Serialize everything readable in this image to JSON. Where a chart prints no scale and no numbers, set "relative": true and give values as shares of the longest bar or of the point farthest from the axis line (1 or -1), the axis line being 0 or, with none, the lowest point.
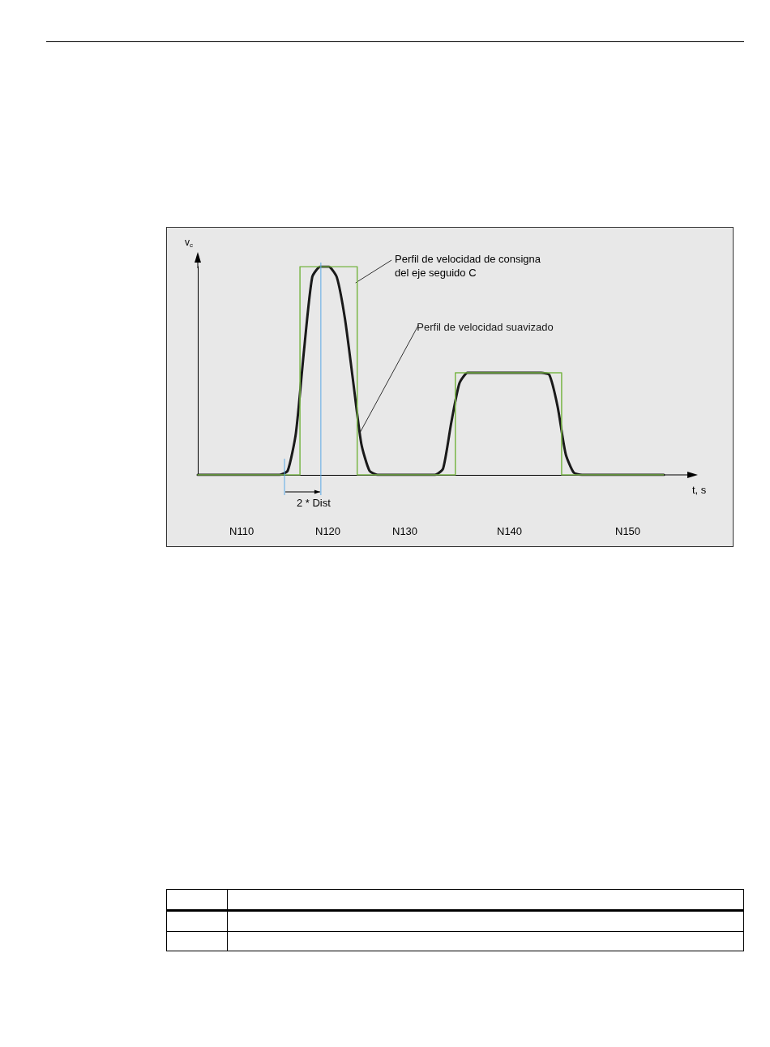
{
  "chart_data": {
    "type": "line",
    "relative": true,
    "xlabel": "t, s",
    "ylabel": "v$_{c}$",
    "categories": [
      null,
      null,
      null,
      null,
      null,
      null,
      null,
      null,
      null,
      null,
      null,
      null,
      null,
      null,
      null,
      null,
      null,
      null,
      null,
      null,
      null,
      null,
      null,
      null,
      null,
      null,
      null,
      null,
      null,
      null,
      null,
      null,
      null,
      null,
      null,
      null,
      null,
      null,
      null,
      null,
      null,
      null,
      null,
      null,
      null,
      null,
      null,
      null,
      null,
      null,
      null,
      null,
      null,
      null,
      null,
      null,
      null,
      null
    ],
    "series": [
      {
        "name": "Perfil de velocidad de consigna\ndel eje seguido C",
        "type": "step",
        "color": "#7ab648",
        "values": [
          0,
          0,
          0,
          0,
          0,
          0,
          0,
          0,
          0,
          0,
          0,
          0,
          0,
          1,
          1,
          1,
          1,
          1,
          1,
          1,
          0,
          0,
          0,
          0,
          0,
          0,
          0,
          0,
          0,
          0,
          0,
          0,
          0.49,
          0.49,
          0.49,
          0.49,
          0.49,
          0.49,
          0.49,
          0.49,
          0.49,
          0.49,
          0.49,
          0.49,
          0.49,
          0,
          0,
          0,
          0,
          0,
          0,
          0,
          0,
          0,
          0,
          0,
          0,
          0
        ]
      },
      {
        "name": "Perfil de velocidad suavizado",
        "color": "#1a1a1a",
        "values": [
          0,
          0,
          0,
          0,
          0,
          0,
          0,
          0,
          0,
          0,
          0,
          0.02,
          0.2,
          0.6,
          0.95,
          1,
          1,
          0.95,
          0.75,
          0.45,
          0.15,
          0.02,
          0,
          0,
          0,
          0,
          0,
          0,
          0,
          0,
          0.03,
          0.25,
          0.44,
          0.49,
          0.49,
          0.49,
          0.49,
          0.49,
          0.49,
          0.49,
          0.49,
          0.49,
          0.49,
          0.48,
          0.33,
          0.1,
          0.01,
          0,
          0,
          0,
          0,
          0,
          0,
          0,
          0,
          0,
          0,
          0
        ]
      }
    ],
    "annotations": [
      "2 * Dist",
      "N110",
      "N120",
      "N130",
      "N140",
      "N150"
    ],
    "grid": false,
    "legend": false,
    "marker": "none"
  }
}
